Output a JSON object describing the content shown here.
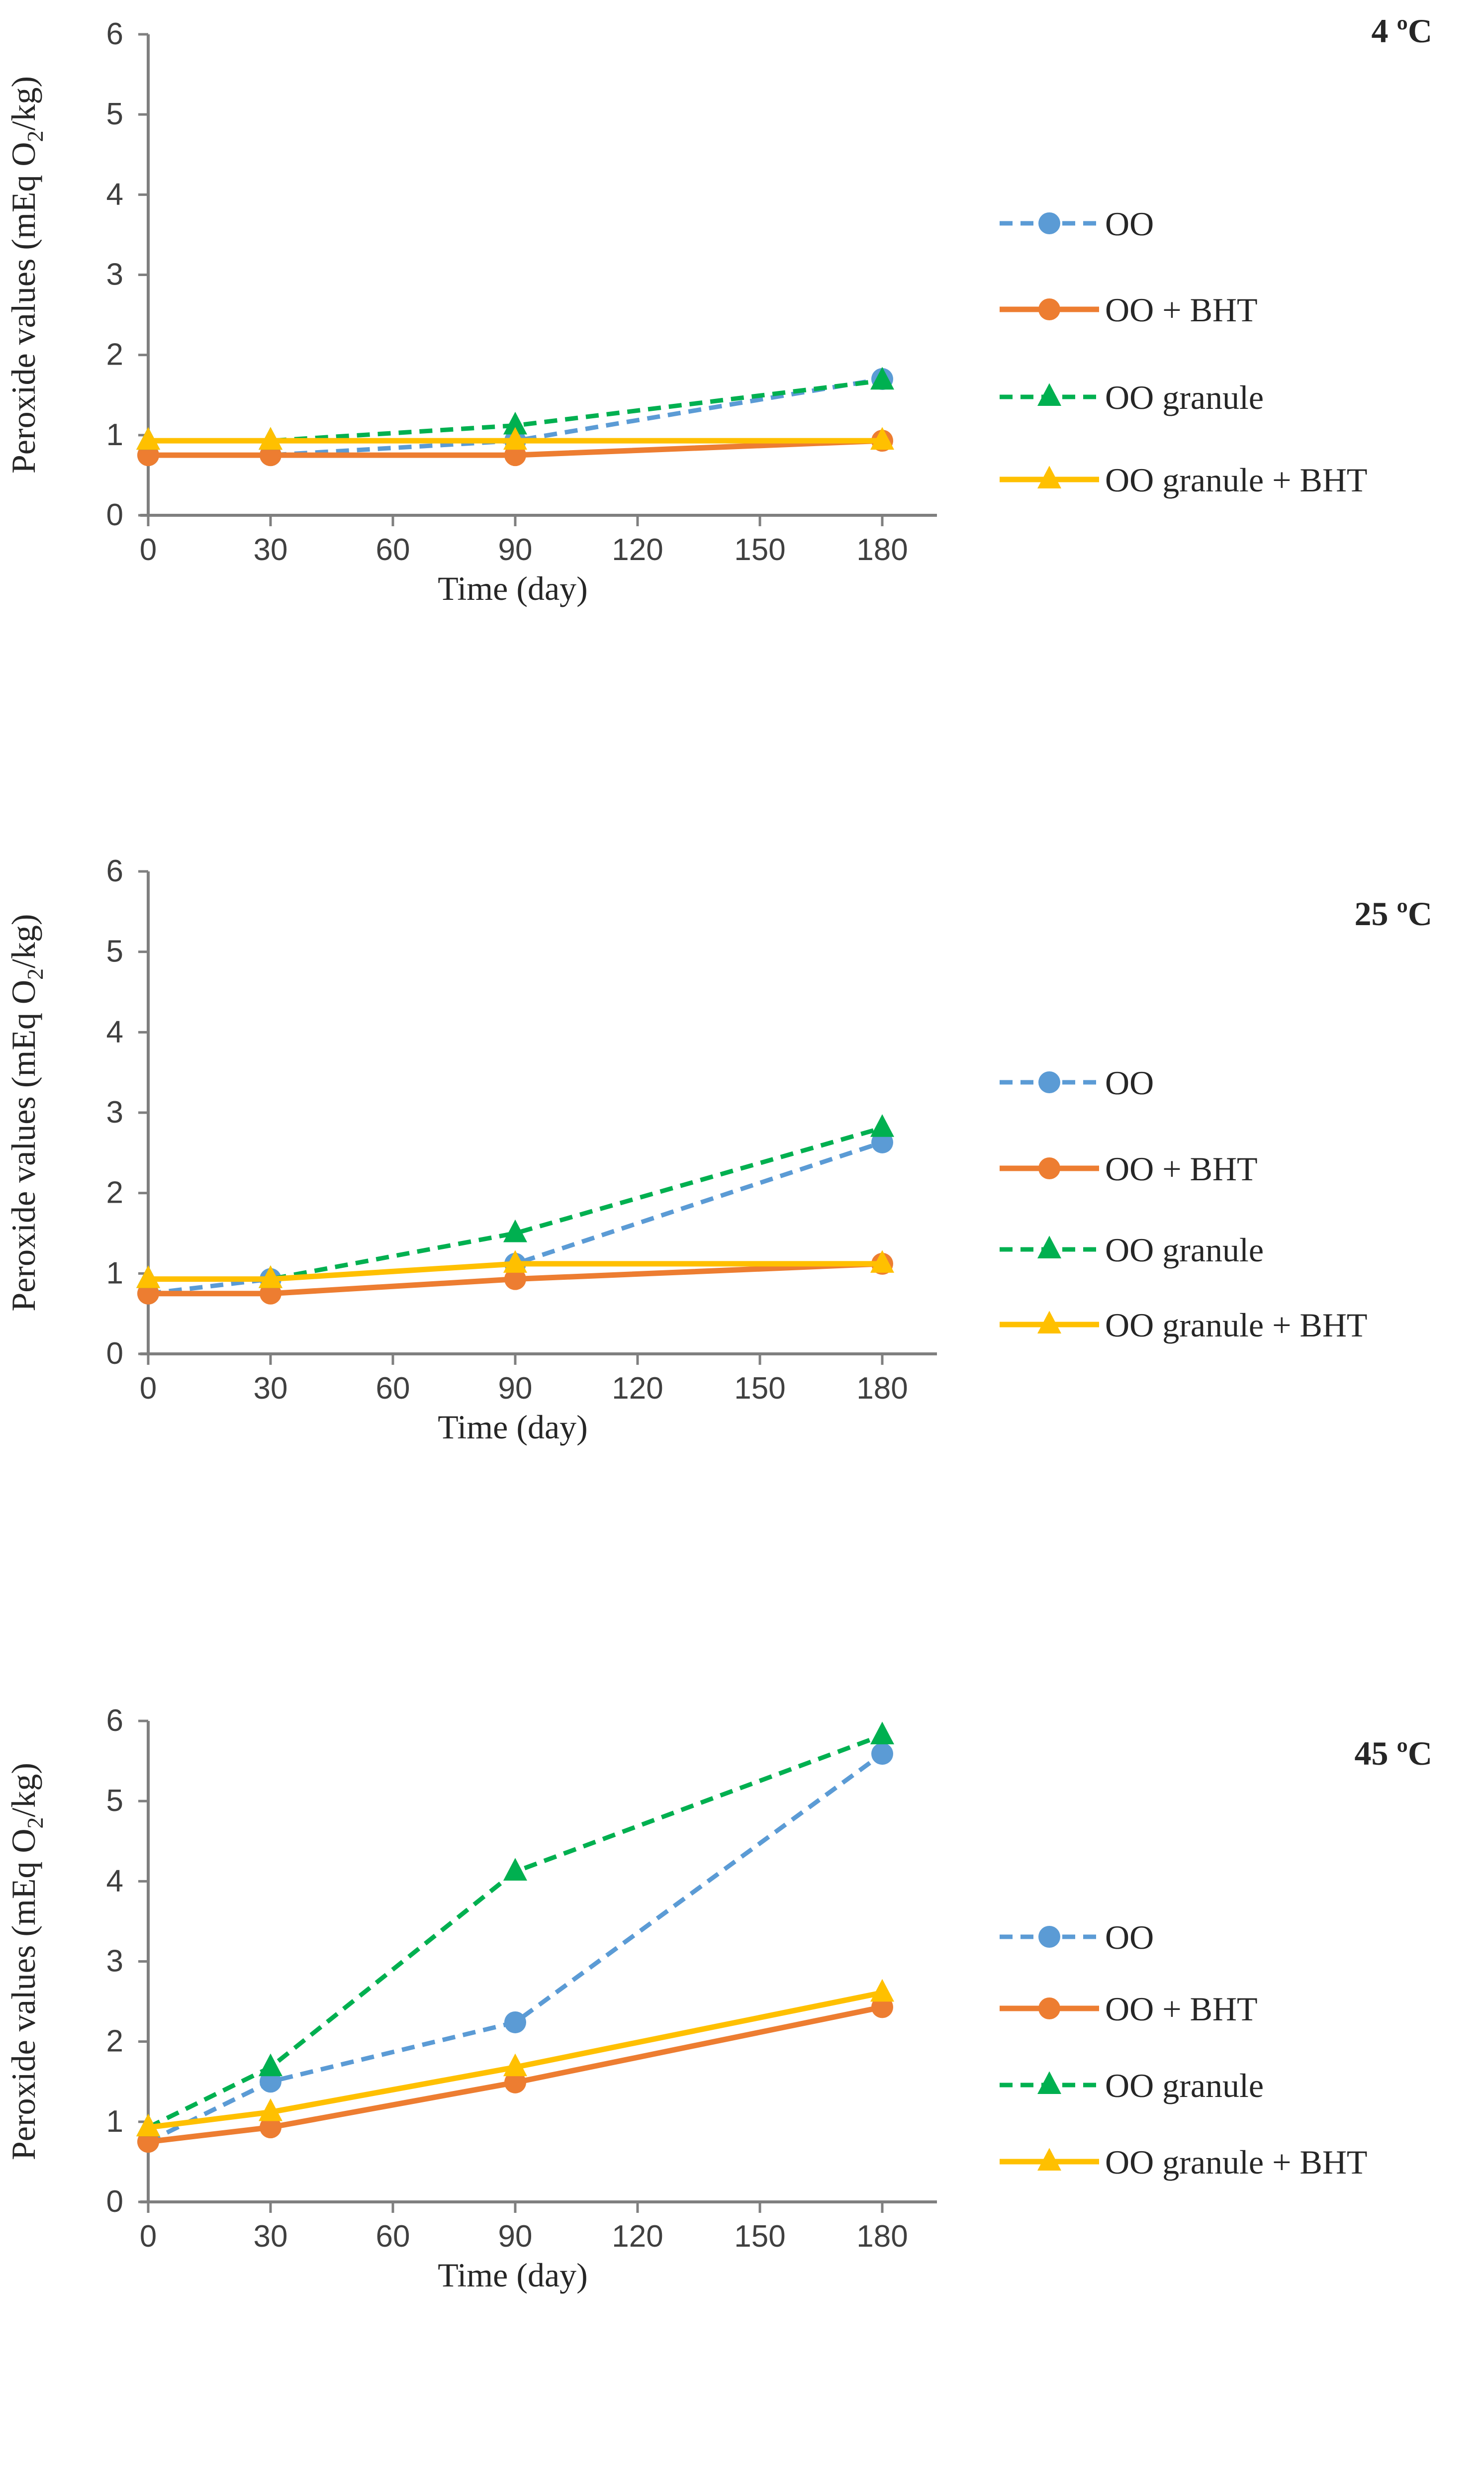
{
  "chart_data": [
    {
      "type": "line",
      "title": "4 ºC",
      "xlabel": "Time (day)",
      "ylabel": "Peroxide values (mEq O2/kg)",
      "ylabel_parts": [
        "Peroxide values (mEq O",
        "2",
        "/kg)"
      ],
      "x": [
        0,
        30,
        90,
        180
      ],
      "xticks": [
        0,
        30,
        60,
        90,
        120,
        150,
        180
      ],
      "yticks": [
        0,
        1,
        2,
        3,
        4,
        5,
        6
      ],
      "xlim": [
        0,
        195
      ],
      "ylim": [
        0,
        6
      ],
      "grid": false,
      "legend_position": "right",
      "series": [
        {
          "name": "OO",
          "values": [
            0.75,
            0.75,
            0.93,
            1.7
          ],
          "color": "#5B9BD5",
          "dash": true,
          "marker": "circle"
        },
        {
          "name": "OO + BHT",
          "values": [
            0.75,
            0.75,
            0.75,
            0.93
          ],
          "color": "#ED7D31",
          "dash": false,
          "marker": "circle"
        },
        {
          "name": "OO granule",
          "values": [
            0.93,
            0.93,
            1.12,
            1.68
          ],
          "color": "#00B050",
          "dash": true,
          "marker": "triangle"
        },
        {
          "name": "OO granule + BHT",
          "values": [
            0.93,
            0.93,
            0.93,
            0.93
          ],
          "color": "#FFC000",
          "dash": false,
          "marker": "triangle"
        }
      ]
    },
    {
      "type": "line",
      "title": "25 ºC",
      "xlabel": "Time (day)",
      "ylabel": "Peroxide values (mEq O2/kg)",
      "ylabel_parts": [
        "Peroxide values (mEq O",
        "2",
        "/kg)"
      ],
      "x": [
        0,
        30,
        90,
        180
      ],
      "xticks": [
        0,
        30,
        60,
        90,
        120,
        150,
        180
      ],
      "yticks": [
        0,
        1,
        2,
        3,
        4,
        5,
        6
      ],
      "xlim": [
        0,
        195
      ],
      "ylim": [
        0,
        6
      ],
      "grid": false,
      "legend_position": "right",
      "series": [
        {
          "name": "OO",
          "values": [
            0.75,
            0.93,
            1.12,
            2.63
          ],
          "color": "#5B9BD5",
          "dash": true,
          "marker": "circle"
        },
        {
          "name": "OO + BHT",
          "values": [
            0.75,
            0.75,
            0.93,
            1.12
          ],
          "color": "#ED7D31",
          "dash": false,
          "marker": "circle"
        },
        {
          "name": "OO granule",
          "values": [
            0.93,
            0.93,
            1.5,
            2.81
          ],
          "color": "#00B050",
          "dash": true,
          "marker": "triangle"
        },
        {
          "name": "OO granule + BHT",
          "values": [
            0.93,
            0.93,
            1.12,
            1.12
          ],
          "color": "#FFC000",
          "dash": false,
          "marker": "triangle"
        }
      ]
    },
    {
      "type": "line",
      "title": "45 ºC",
      "xlabel": "Time (day)",
      "ylabel": "Peroxide values (mEq O2/kg)",
      "ylabel_parts": [
        "Peroxide values (mEq O",
        "2",
        "/kg)"
      ],
      "x": [
        0,
        30,
        90,
        180
      ],
      "xticks": [
        0,
        30,
        60,
        90,
        120,
        150,
        180
      ],
      "yticks": [
        0,
        1,
        2,
        3,
        4,
        5,
        6
      ],
      "xlim": [
        0,
        195
      ],
      "ylim": [
        0,
        6
      ],
      "grid": false,
      "legend_position": "right",
      "series": [
        {
          "name": "OO",
          "values": [
            0.75,
            1.5,
            2.24,
            5.59
          ],
          "color": "#5B9BD5",
          "dash": true,
          "marker": "circle"
        },
        {
          "name": "OO + BHT",
          "values": [
            0.75,
            0.93,
            1.49,
            2.43
          ],
          "color": "#ED7D31",
          "dash": false,
          "marker": "circle"
        },
        {
          "name": "OO granule",
          "values": [
            0.93,
            1.68,
            4.12,
            5.82
          ],
          "color": "#00B050",
          "dash": true,
          "marker": "triangle"
        },
        {
          "name": "OO granule + BHT",
          "values": [
            0.93,
            1.12,
            1.68,
            2.61
          ],
          "color": "#FFC000",
          "dash": false,
          "marker": "triangle"
        }
      ]
    }
  ]
}
